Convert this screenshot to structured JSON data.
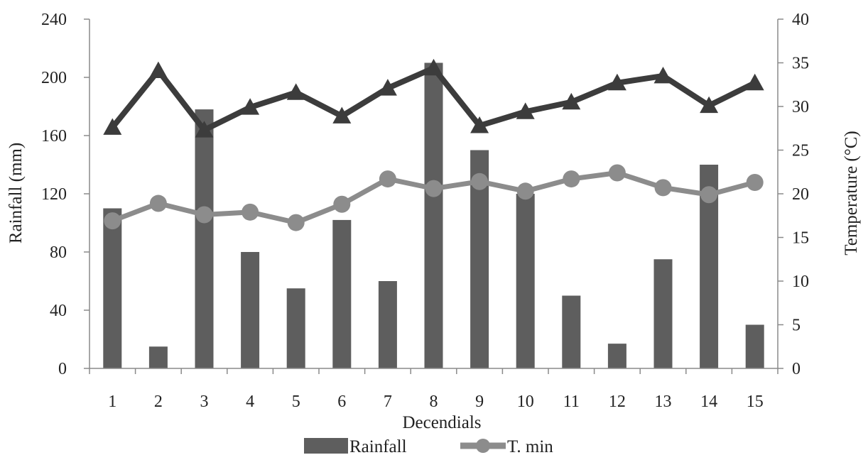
{
  "chart_data": {
    "type": "bar",
    "categories": [
      "1",
      "2",
      "3",
      "4",
      "5",
      "6",
      "7",
      "8",
      "9",
      "10",
      "11",
      "12",
      "13",
      "14",
      "15"
    ],
    "xlabel": "Decendials",
    "ylabel": "Rainfall (mm)",
    "y2label": "Temperature (°C)",
    "ylim": [
      0,
      240
    ],
    "y2lim": [
      0,
      40
    ],
    "yticks": [
      "0",
      "40",
      "80",
      "120",
      "160",
      "200",
      "240"
    ],
    "y2ticks": [
      "0",
      "5",
      "10",
      "15",
      "20",
      "25",
      "30",
      "35",
      "40"
    ],
    "grid": false,
    "legend_position": "bottom",
    "series": [
      {
        "name": "Rainfall",
        "type": "bar",
        "axis": "left",
        "color": "#5e5e5e",
        "values": [
          110,
          15,
          178,
          80,
          55,
          102,
          60,
          210,
          150,
          120,
          50,
          17,
          75,
          140,
          30
        ]
      },
      {
        "name": "T. min",
        "type": "line",
        "axis": "right",
        "marker": "circle",
        "color": "#8c8c8c",
        "values": [
          16.9,
          18.9,
          17.6,
          17.9,
          16.7,
          18.8,
          21.7,
          20.6,
          21.4,
          20.3,
          21.7,
          22.4,
          20.7,
          19.9,
          21.3
        ]
      },
      {
        "name": "",
        "type": "line",
        "axis": "right",
        "marker": "triangle",
        "color": "#3c3c3c",
        "values": [
          27.6,
          34.1,
          27.3,
          29.9,
          31.6,
          28.9,
          32.1,
          34.4,
          27.8,
          29.4,
          30.5,
          32.7,
          33.5,
          30.1,
          32.7
        ]
      }
    ]
  }
}
